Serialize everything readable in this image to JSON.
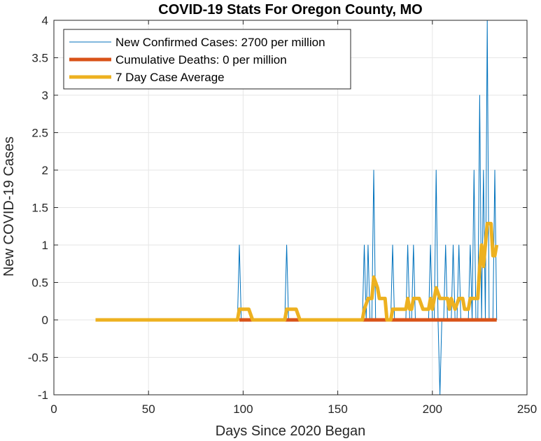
{
  "chart_data": {
    "type": "line",
    "title": "COVID-19 Stats For Oregon County, MO",
    "xlabel": "Days Since 2020 Began",
    "ylabel": "New COVID-19 Cases",
    "xlim": [
      0,
      250
    ],
    "ylim": [
      -1,
      4
    ],
    "xticks": [
      0,
      50,
      100,
      150,
      200,
      250
    ],
    "yticks": [
      -1,
      -0.5,
      0,
      0.5,
      1,
      1.5,
      2,
      2.5,
      3,
      3.5,
      4
    ],
    "xtick_labels": [
      "0",
      "50",
      "100",
      "150",
      "200",
      "250"
    ],
    "ytick_labels": [
      "-1",
      "-0.5",
      "0",
      "0.5",
      "1",
      "1.5",
      "2",
      "2.5",
      "3",
      "3.5",
      "4"
    ],
    "grid": true,
    "legend_position": "top-left",
    "series": [
      {
        "name": "New Confirmed Cases: 2700 per million",
        "color": "#0072BD",
        "line_width": "thin",
        "points": [
          [
            22,
            0
          ],
          [
            97,
            0
          ],
          [
            98,
            1
          ],
          [
            99,
            0
          ],
          [
            122,
            0
          ],
          [
            123,
            1
          ],
          [
            124,
            0
          ],
          [
            163,
            0
          ],
          [
            164,
            1
          ],
          [
            165,
            0
          ],
          [
            166,
            1
          ],
          [
            167,
            0
          ],
          [
            168,
            0
          ],
          [
            169,
            2
          ],
          [
            170,
            0
          ],
          [
            178,
            0
          ],
          [
            179,
            1
          ],
          [
            180,
            0
          ],
          [
            186,
            0
          ],
          [
            187,
            1
          ],
          [
            188,
            0
          ],
          [
            189,
            0
          ],
          [
            190,
            1
          ],
          [
            191,
            0
          ],
          [
            198,
            0
          ],
          [
            199,
            1
          ],
          [
            200,
            0
          ],
          [
            201,
            0
          ],
          [
            202,
            2
          ],
          [
            203,
            0
          ],
          [
            204,
            -1
          ],
          [
            205,
            0
          ],
          [
            206,
            0
          ],
          [
            207,
            1
          ],
          [
            208,
            0
          ],
          [
            210,
            0
          ],
          [
            211,
            1
          ],
          [
            212,
            0
          ],
          [
            213,
            0
          ],
          [
            214,
            1
          ],
          [
            215,
            0
          ],
          [
            219,
            0
          ],
          [
            220,
            1
          ],
          [
            221,
            0
          ],
          [
            222,
            2
          ],
          [
            223,
            0
          ],
          [
            224,
            0
          ],
          [
            225,
            3
          ],
          [
            226,
            0
          ],
          [
            227,
            2
          ],
          [
            228,
            0
          ],
          [
            229,
            4
          ],
          [
            230,
            0
          ],
          [
            231,
            0
          ],
          [
            232,
            0
          ],
          [
            233,
            2
          ],
          [
            234,
            0
          ]
        ]
      },
      {
        "name": "Cumulative Deaths: 0 per million",
        "color": "#D95319",
        "line_width": "thick",
        "points": [
          [
            98,
            0
          ],
          [
            104,
            0
          ],
          [
            123,
            0
          ],
          [
            129,
            0
          ],
          [
            164,
            0
          ],
          [
            234,
            0
          ]
        ]
      },
      {
        "name": "7 Day Case Average",
        "color": "#EDB120",
        "line_width": "thick",
        "points": [
          [
            22,
            0
          ],
          [
            97,
            0
          ],
          [
            98,
            0.143
          ],
          [
            103,
            0.143
          ],
          [
            105,
            0
          ],
          [
            122,
            0
          ],
          [
            123,
            0.143
          ],
          [
            128,
            0.143
          ],
          [
            130,
            0
          ],
          [
            163,
            0
          ],
          [
            164,
            0.143
          ],
          [
            166,
            0.286
          ],
          [
            168,
            0.286
          ],
          [
            169,
            0.571
          ],
          [
            171,
            0.429
          ],
          [
            172,
            0.286
          ],
          [
            175,
            0.286
          ],
          [
            176,
            0
          ],
          [
            178,
            0
          ],
          [
            179,
            0.143
          ],
          [
            184,
            0.143
          ],
          [
            186,
            0.143
          ],
          [
            187,
            0.286
          ],
          [
            188,
            0.143
          ],
          [
            189,
            0.143
          ],
          [
            190,
            0.286
          ],
          [
            193,
            0.286
          ],
          [
            195,
            0.143
          ],
          [
            198,
            0.143
          ],
          [
            199,
            0.286
          ],
          [
            200,
            0.143
          ],
          [
            201,
            0.286
          ],
          [
            202,
            0.429
          ],
          [
            204,
            0.286
          ],
          [
            208,
            0.286
          ],
          [
            209,
            0.143
          ],
          [
            210,
            0.286
          ],
          [
            212,
            0.143
          ],
          [
            214,
            0.286
          ],
          [
            216,
            0.286
          ],
          [
            217,
            0.143
          ],
          [
            219,
            0.143
          ],
          [
            220,
            0.286
          ],
          [
            224,
            0.286
          ],
          [
            225,
            0.714
          ],
          [
            226,
            1
          ],
          [
            227,
            0.714
          ],
          [
            228,
            1
          ],
          [
            229,
            1.286
          ],
          [
            231,
            1.286
          ],
          [
            232,
            0.857
          ],
          [
            233,
            0.857
          ],
          [
            234,
            1
          ]
        ]
      }
    ]
  }
}
